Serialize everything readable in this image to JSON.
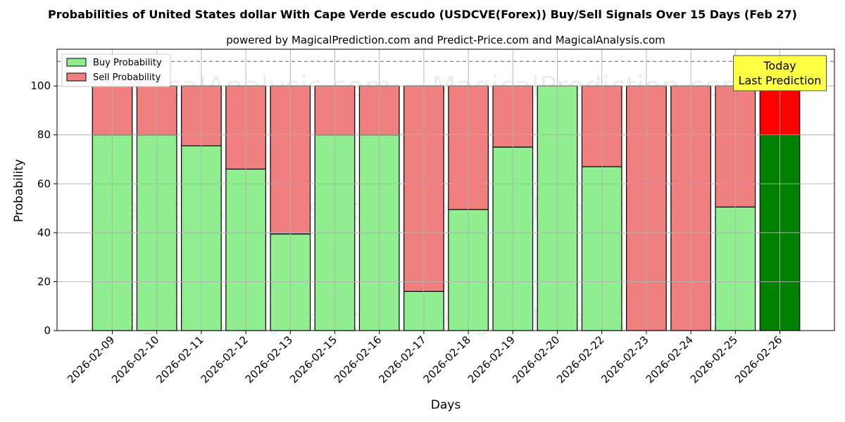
{
  "chart_data": {
    "type": "bar",
    "stacked": true,
    "title": "Probabilities of United States dollar With Cape Verde escudo (USDCVE(Forex)) Buy/Sell Signals Over 15 Days (Feb 27)",
    "subtitle": "powered by MagicalPrediction.com and Predict-Price.com and MagicalAnalysis.com",
    "xlabel": "Days",
    "ylabel": "Probability",
    "ylim": [
      0,
      115
    ],
    "yticks": [
      0,
      20,
      40,
      60,
      80,
      100
    ],
    "grid": true,
    "legend_position": "top-left",
    "reference_line": 110,
    "categories": [
      "2026-02-09",
      "2026-02-10",
      "2026-02-11",
      "2026-02-12",
      "2026-02-13",
      "2026-02-15",
      "2026-02-16",
      "2026-02-17",
      "2026-02-18",
      "2026-02-19",
      "2026-02-20",
      "2026-02-22",
      "2026-02-23",
      "2026-02-24",
      "2026-02-25",
      "2026-02-26"
    ],
    "series": [
      {
        "name": "Buy Probability",
        "color": "#90ee90",
        "values": [
          80,
          80,
          75.5,
          66,
          39.5,
          80,
          80,
          16,
          49.5,
          75,
          100,
          67,
          0,
          0,
          50.5,
          80
        ]
      },
      {
        "name": "Sell Probability",
        "color": "#f08080",
        "values": [
          20,
          20,
          24.5,
          34,
          60.5,
          20,
          20,
          84,
          50.5,
          25,
          0,
          33,
          100,
          100,
          49.5,
          20
        ]
      }
    ],
    "highlight": {
      "index": 15,
      "buy_color": "#008000",
      "sell_color": "#ff0000",
      "annotation": [
        "Today",
        "Last Prediction"
      ]
    },
    "watermarks": [
      "MagicalAnalysis.com",
      "MagicalPrediction.com"
    ]
  }
}
